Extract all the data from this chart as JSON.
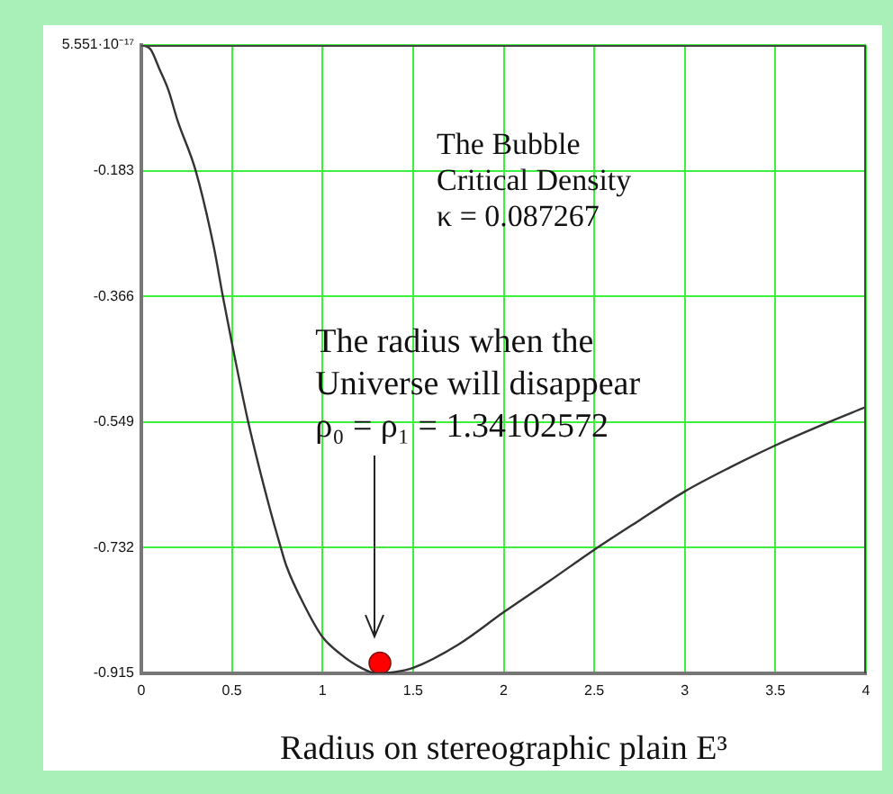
{
  "chart_data": {
    "type": "line",
    "xlabel": "Radius on stereographic plain E³",
    "annotations": [
      "The Bubble\nCritical Density\nκ = 0.087267",
      "The radius when the\nUniverse will disappear\nρ₀ = ρ₁ = 1.34102572"
    ],
    "series": [
      {
        "color": "#333333",
        "x": [
          0,
          0.05,
          0.1,
          0.15,
          0.2,
          0.3,
          0.4,
          0.45,
          0.5,
          0.59,
          0.7,
          0.77,
          0.8,
          0.9,
          1,
          1.1,
          1.2,
          1.3,
          1.4,
          1.5,
          1.75,
          2,
          2.25,
          2.5,
          2.75,
          3,
          3.25,
          3.5,
          3.75,
          4
        ],
        "values": [
          0,
          -0.006,
          -0.035,
          -0.066,
          -0.11,
          -0.183,
          -0.294,
          -0.366,
          -0.434,
          -0.549,
          -0.666,
          -0.732,
          -0.758,
          -0.816,
          -0.862,
          -0.887,
          -0.905,
          -0.915,
          -0.913,
          -0.907,
          -0.873,
          -0.826,
          -0.781,
          -0.735,
          -0.692,
          -0.65,
          -0.615,
          -0.583,
          -0.554,
          -0.527
        ]
      },
      {
        "type": "scatter",
        "color": "#ff0000",
        "marker": "circle",
        "x": [
          1.317
        ],
        "values": [
          -0.9
        ]
      }
    ],
    "xlim": [
      0,
      4
    ],
    "xticks": [
      0,
      0.5,
      1,
      1.5,
      2,
      2.5,
      3,
      3.5,
      4
    ],
    "ylim": [
      -0.915,
      5.551e-17
    ],
    "yticks": [
      {
        "value": 5.551e-17,
        "label": "5.551·10⁻¹⁷"
      },
      -0.183,
      -0.366,
      -0.549,
      -0.732,
      -0.915
    ],
    "grid": true
  }
}
